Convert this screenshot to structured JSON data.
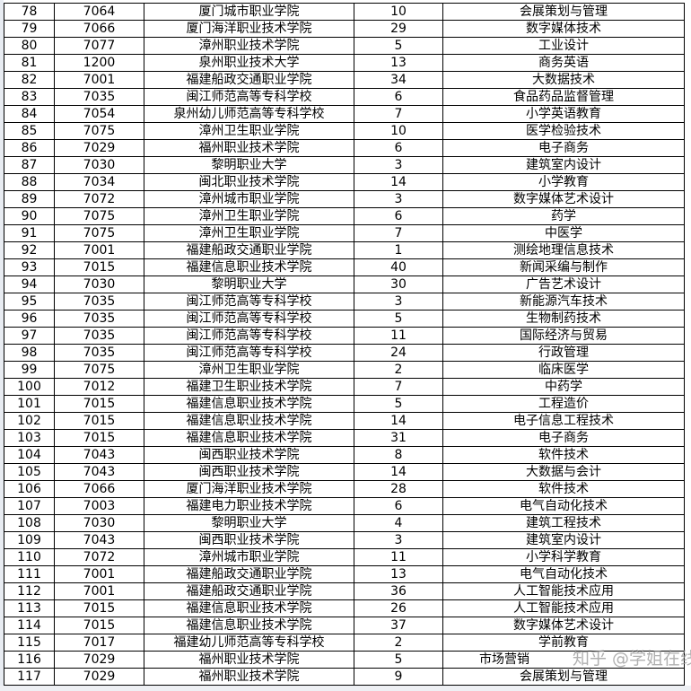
{
  "watermark": "知乎 @学姐在线",
  "rows": [
    [
      "78",
      "7064",
      "厦门城市职业学院",
      "10",
      "会展策划与管理"
    ],
    [
      "79",
      "7066",
      "厦门海洋职业技术学院",
      "29",
      "数字媒体技术"
    ],
    [
      "80",
      "7077",
      "漳州职业技术学院",
      "5",
      "工业设计"
    ],
    [
      "81",
      "1200",
      "泉州职业技术大学",
      "13",
      "商务英语"
    ],
    [
      "82",
      "7001",
      "福建船政交通职业学院",
      "34",
      "大数据技术"
    ],
    [
      "83",
      "7035",
      "闽江师范高等专科学校",
      "6",
      "食品药品监督管理"
    ],
    [
      "84",
      "7054",
      "泉州幼儿师范高等专科学校",
      "7",
      "小学英语教育"
    ],
    [
      "85",
      "7075",
      "漳州卫生职业学院",
      "10",
      "医学检验技术"
    ],
    [
      "86",
      "7029",
      "福州职业技术学院",
      "6",
      "电子商务"
    ],
    [
      "87",
      "7030",
      "黎明职业大学",
      "3",
      "建筑室内设计"
    ],
    [
      "88",
      "7034",
      "闽北职业技术学院",
      "14",
      "小学教育"
    ],
    [
      "89",
      "7072",
      "漳州城市职业学院",
      "3",
      "数字媒体艺术设计"
    ],
    [
      "90",
      "7075",
      "漳州卫生职业学院",
      "6",
      "药学"
    ],
    [
      "91",
      "7075",
      "漳州卫生职业学院",
      "7",
      "中医学"
    ],
    [
      "92",
      "7001",
      "福建船政交通职业学院",
      "1",
      "测绘地理信息技术"
    ],
    [
      "93",
      "7015",
      "福建信息职业技术学院",
      "40",
      "新闻采编与制作"
    ],
    [
      "94",
      "7030",
      "黎明职业大学",
      "30",
      "广告艺术设计"
    ],
    [
      "95",
      "7035",
      "闽江师范高等专科学校",
      "3",
      "新能源汽车技术"
    ],
    [
      "96",
      "7035",
      "闽江师范高等专科学校",
      "5",
      "生物制药技术"
    ],
    [
      "97",
      "7035",
      "闽江师范高等专科学校",
      "11",
      "国际经济与贸易"
    ],
    [
      "98",
      "7035",
      "闽江师范高等专科学校",
      "24",
      "行政管理"
    ],
    [
      "99",
      "7075",
      "漳州卫生职业学院",
      "2",
      "临床医学"
    ],
    [
      "100",
      "7012",
      "福建卫生职业技术学院",
      "7",
      "中药学"
    ],
    [
      "101",
      "7015",
      "福建信息职业技术学院",
      "5",
      "工程造价"
    ],
    [
      "102",
      "7015",
      "福建信息职业技术学院",
      "14",
      "电子信息工程技术"
    ],
    [
      "103",
      "7015",
      "福建信息职业技术学院",
      "31",
      "电子商务"
    ],
    [
      "104",
      "7043",
      "闽西职业技术学院",
      "8",
      "软件技术"
    ],
    [
      "105",
      "7043",
      "闽西职业技术学院",
      "14",
      "大数据与会计"
    ],
    [
      "106",
      "7066",
      "厦门海洋职业技术学院",
      "28",
      "软件技术"
    ],
    [
      "107",
      "7003",
      "福建电力职业技术学院",
      "6",
      "电气自动化技术"
    ],
    [
      "108",
      "7030",
      "黎明职业大学",
      "4",
      "建筑工程技术"
    ],
    [
      "109",
      "7043",
      "闽西职业技术学院",
      "3",
      "建筑室内设计"
    ],
    [
      "110",
      "7072",
      "漳州城市职业学院",
      "11",
      "小学科学教育"
    ],
    [
      "111",
      "7001",
      "福建船政交通职业学院",
      "13",
      "电气自动化技术"
    ],
    [
      "112",
      "7001",
      "福建船政交通职业学院",
      "36",
      "人工智能技术应用"
    ],
    [
      "113",
      "7015",
      "福建信息职业技术学院",
      "26",
      "人工智能技术应用"
    ],
    [
      "114",
      "7015",
      "福建信息职业技术学院",
      "37",
      "数字媒体艺术设计"
    ],
    [
      "115",
      "7017",
      "福建幼儿师范高等专科学校",
      "2",
      "学前教育"
    ],
    [
      "116",
      "7029",
      "福州职业技术学院",
      "5",
      "市场营销"
    ],
    [
      "117",
      "7029",
      "福州职业技术学院",
      "9",
      "会展策划与管理"
    ]
  ]
}
